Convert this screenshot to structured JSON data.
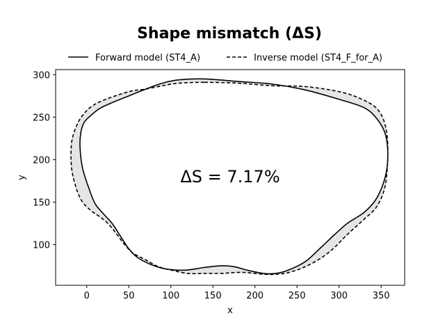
{
  "chart_data": {
    "type": "line",
    "title": "Shape mismatch (ΔS)",
    "xlabel": "x",
    "ylabel": "y",
    "xlim": [
      -37,
      378
    ],
    "ylim": [
      52,
      306
    ],
    "xticks": [
      "0",
      "50",
      "100",
      "150",
      "200",
      "250",
      "300",
      "350"
    ],
    "yticks": [
      "100",
      "150",
      "200",
      "250",
      "300"
    ],
    "legend_placement": "top-center",
    "annotation": "ΔS = 7.17%",
    "fill_between_color": "#e5e5e5",
    "series": [
      {
        "name": "Forward model (ST4_A)",
        "style": "solid",
        "color": "#000000",
        "x": [
          140,
          180,
          220,
          260,
          300,
          330,
          345,
          355,
          358,
          355,
          345,
          330,
          310,
          295,
          280,
          260,
          240,
          225,
          210,
          190,
          175,
          160,
          140,
          120,
          105,
          90,
          75,
          60,
          50,
          40,
          30,
          20,
          10,
          3,
          -5,
          -8,
          -7,
          -3,
          5,
          15,
          30,
          50,
          70,
          90,
          110
        ],
        "y": [
          295,
          292,
          289,
          282,
          271,
          261,
          248,
          230,
          205,
          180,
          155,
          138,
          125,
          112,
          98,
          80,
          70,
          66,
          66,
          70,
          74,
          75,
          73,
          70,
          70,
          72,
          77,
          85,
          95,
          110,
          125,
          136,
          148,
          165,
          190,
          215,
          232,
          244,
          252,
          260,
          267,
          275,
          283,
          290,
          294
        ]
      },
      {
        "name": "Inverse model (ST4_F_for_A)",
        "style": "dashed",
        "color": "#000000",
        "x": [
          140,
          180,
          220,
          260,
          300,
          325,
          345,
          355,
          358,
          355,
          345,
          330,
          310,
          295,
          280,
          260,
          240,
          225,
          210,
          190,
          175,
          160,
          140,
          120,
          100,
          85,
          70,
          55,
          45,
          35,
          25,
          15,
          5,
          -5,
          -12,
          -18,
          -18,
          -12,
          -5,
          5,
          20,
          50,
          70,
          90,
          110
        ],
        "y": [
          291,
          290,
          287,
          286,
          280,
          272,
          260,
          240,
          210,
          170,
          145,
          130,
          112,
          97,
          85,
          74,
          67,
          65,
          65,
          67,
          67,
          66,
          66,
          66,
          70,
          74,
          82,
          90,
          100,
          113,
          125,
          133,
          140,
          150,
          165,
          190,
          220,
          240,
          252,
          262,
          270,
          280,
          283,
          287,
          290
        ]
      }
    ]
  }
}
